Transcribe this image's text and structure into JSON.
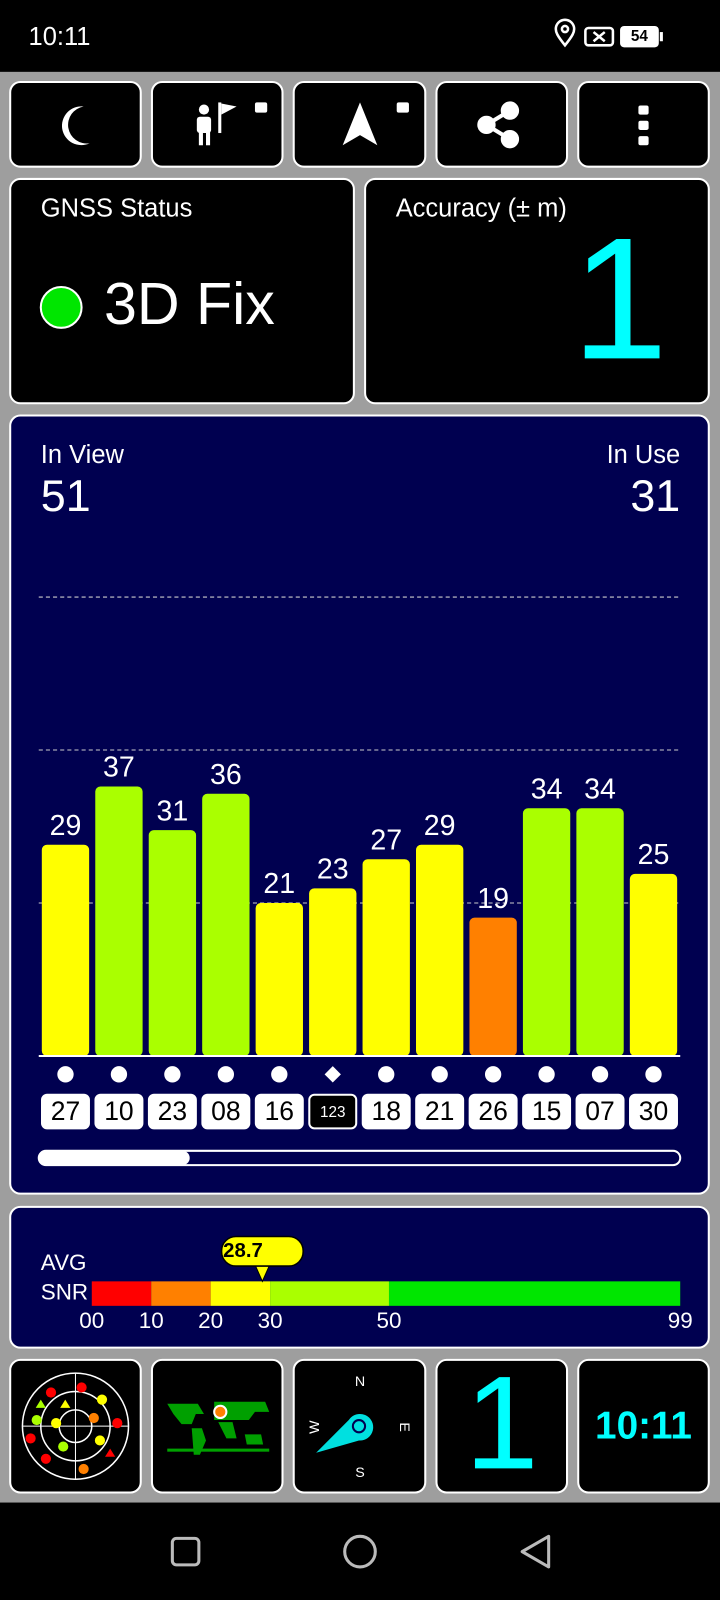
{
  "status_bar": {
    "time": "10:11",
    "battery": "54"
  },
  "gnss_status": {
    "label": "GNSS Status",
    "fix": "3D Fix"
  },
  "accuracy": {
    "label": "Accuracy (± m)",
    "value": 1
  },
  "satellites": {
    "in_view_label": "In View",
    "in_view": 51,
    "in_use_label": "In Use",
    "in_use": 31,
    "chart": {
      "type": "bar",
      "categories": [
        "27",
        "10",
        "23",
        "08",
        "16",
        "123",
        "18",
        "21",
        "26",
        "15",
        "07",
        "30"
      ],
      "values": [
        29,
        37,
        31,
        36,
        21,
        23,
        27,
        29,
        19,
        34,
        34,
        25
      ],
      "colors": [
        "#ffff00",
        "#aaff00",
        "#aaff00",
        "#aaff00",
        "#ffff00",
        "#ffff00",
        "#ffff00",
        "#ffff00",
        "#ff8000",
        "#aaff00",
        "#aaff00",
        "#ffff00"
      ],
      "markers": [
        "circle",
        "circle",
        "circle",
        "circle",
        "circle",
        "diamond",
        "circle",
        "circle",
        "circle",
        "circle",
        "circle",
        "circle"
      ],
      "ylim": [
        0,
        63
      ],
      "grid_lines": [
        21,
        42,
        63
      ]
    }
  },
  "snr": {
    "label_line1": "AVG",
    "label_line2": "SNR",
    "avg": 28.7,
    "xlim": [
      0,
      99
    ],
    "ticks": [
      {
        "value": 0,
        "label": "00"
      },
      10,
      20,
      30,
      50,
      99
    ],
    "band_colors": [
      "#ff0000",
      "#ff8000",
      "#ffff00",
      "#aaff00",
      "#00e600"
    ]
  },
  "compass": {
    "north": "N",
    "east": "E",
    "south": "S",
    "west": "W"
  }
}
